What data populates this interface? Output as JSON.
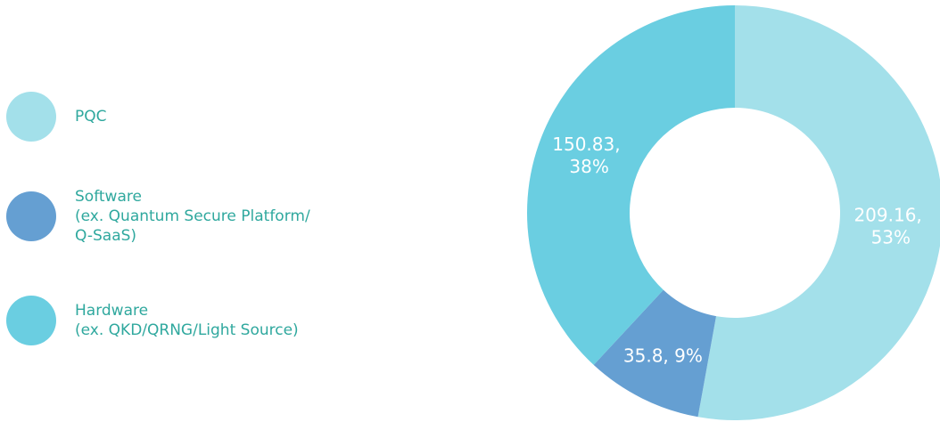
{
  "chart_data": {
    "type": "donut",
    "categories": [
      "PQC",
      "Software\n(ex. Quantum Secure Platform/\nQ-SaaS)",
      "Hardware\n(ex. QKD/QRNG/Light Source)"
    ],
    "values": [
      209.16,
      35.8,
      150.83
    ],
    "value_labels": [
      "209.16, 53%",
      "35.8, 9%",
      "150.83, 38%"
    ],
    "colors": [
      "#a3e0ea",
      "#659fd2",
      "#6acee1"
    ]
  }
}
